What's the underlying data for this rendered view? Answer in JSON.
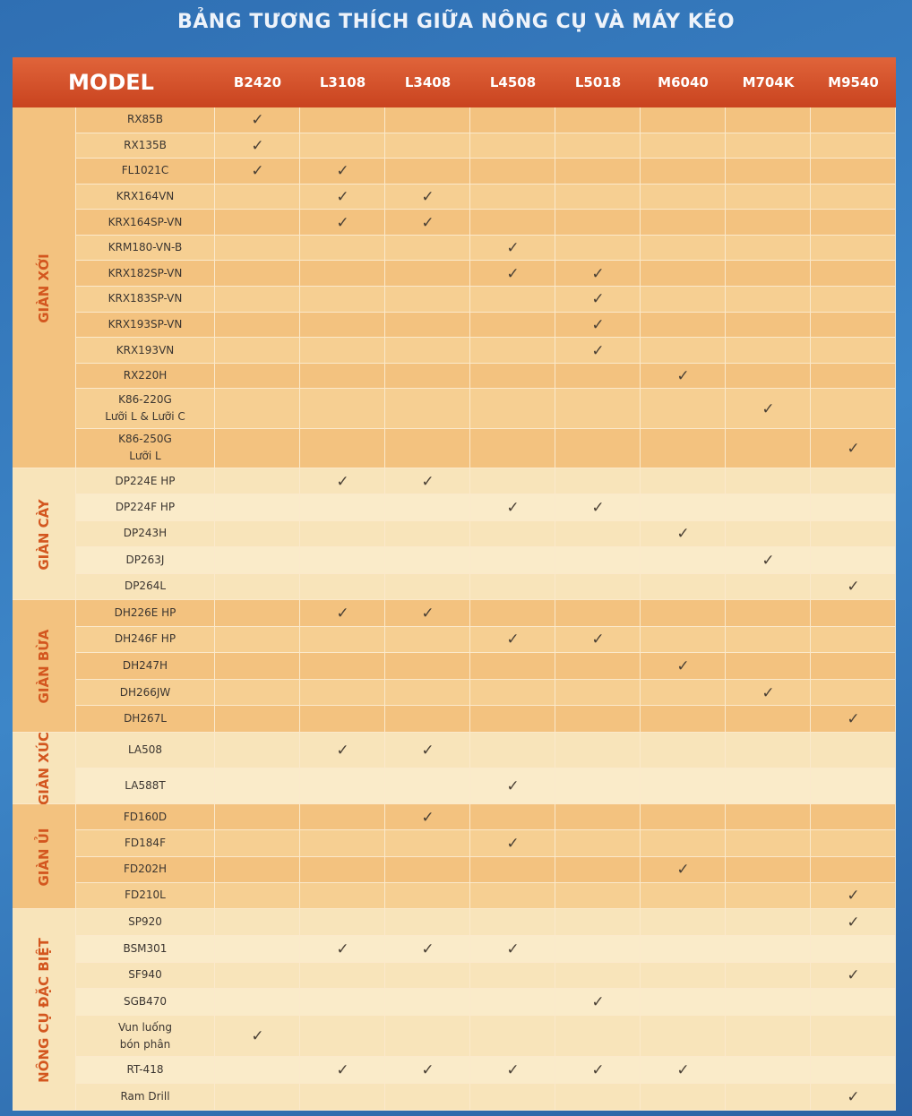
{
  "title": "BẢNG TƯƠNG THÍCH GIỮA NÔNG CỤ VÀ MÁY KÉO",
  "header": {
    "model": "MODEL",
    "columns": [
      "B2420",
      "L3108",
      "L3408",
      "L4508",
      "L5018",
      "M6040",
      "M704K",
      "M9540"
    ]
  },
  "groups": [
    {
      "label": "GIÀN XỚI",
      "rows": [
        {
          "model": "RX85B",
          "cells": [
            "✓",
            null,
            null,
            null,
            null,
            null,
            null,
            null
          ]
        },
        {
          "model": "RX135B",
          "cells": [
            "✓",
            null,
            null,
            null,
            null,
            null,
            null,
            null
          ]
        },
        {
          "model": "FL1021C",
          "cells": [
            "✓",
            "✓",
            null,
            null,
            null,
            null,
            null,
            null
          ]
        },
        {
          "model": "KRX164VN",
          "cells": [
            null,
            "✓",
            "✓",
            null,
            null,
            null,
            null,
            null
          ]
        },
        {
          "model": "KRX164SP-VN",
          "cells": [
            null,
            "✓",
            "✓",
            null,
            null,
            null,
            null,
            null
          ]
        },
        {
          "model": "KRM180-VN-B",
          "cells": [
            null,
            null,
            null,
            "✓",
            null,
            null,
            null,
            null
          ]
        },
        {
          "model": "KRX182SP-VN",
          "cells": [
            null,
            null,
            null,
            "✓",
            "✓",
            null,
            null,
            null
          ]
        },
        {
          "model": "KRX183SP-VN",
          "cells": [
            null,
            null,
            null,
            null,
            "✓",
            null,
            null,
            null
          ]
        },
        {
          "model": "KRX193SP-VN",
          "cells": [
            null,
            null,
            null,
            null,
            "✓",
            null,
            null,
            null
          ]
        },
        {
          "model": "KRX193VN",
          "cells": [
            null,
            null,
            null,
            null,
            "✓",
            null,
            null,
            null
          ]
        },
        {
          "model": "RX220H",
          "cells": [
            null,
            null,
            null,
            null,
            null,
            "✓",
            null,
            null
          ]
        },
        {
          "model": "K86-220G\nLưỡi L & Lưỡi C",
          "cells": [
            null,
            null,
            null,
            null,
            null,
            null,
            "✓",
            null
          ]
        },
        {
          "model": "K86-250G\nLưỡi L",
          "cells": [
            null,
            null,
            null,
            null,
            null,
            null,
            null,
            "✓"
          ]
        }
      ]
    },
    {
      "label": "GIÀN CÀY",
      "rows": [
        {
          "model": "DP224E HP",
          "cells": [
            null,
            "✓",
            "✓",
            null,
            null,
            null,
            null,
            null
          ]
        },
        {
          "model": "DP224F HP",
          "cells": [
            null,
            null,
            null,
            "✓",
            "✓",
            null,
            null,
            null
          ]
        },
        {
          "model": "DP243H",
          "cells": [
            null,
            null,
            null,
            null,
            null,
            "✓",
            null,
            null
          ]
        },
        {
          "model": "DP263J",
          "cells": [
            null,
            null,
            null,
            null,
            null,
            null,
            "✓",
            null
          ]
        },
        {
          "model": "DP264L",
          "cells": [
            null,
            null,
            null,
            null,
            null,
            null,
            null,
            "✓"
          ]
        }
      ]
    },
    {
      "label": "GIÀN BỪA",
      "rows": [
        {
          "model": "DH226E HP",
          "cells": [
            null,
            "✓",
            "✓",
            null,
            null,
            null,
            null,
            null
          ]
        },
        {
          "model": "DH246F HP",
          "cells": [
            null,
            null,
            null,
            "✓",
            "✓",
            null,
            null,
            null
          ]
        },
        {
          "model": "DH247H",
          "cells": [
            null,
            null,
            null,
            null,
            null,
            "✓",
            null,
            null
          ]
        },
        {
          "model": "DH266JW",
          "cells": [
            null,
            null,
            null,
            null,
            null,
            null,
            "✓",
            null
          ]
        },
        {
          "model": "DH267L",
          "cells": [
            null,
            null,
            null,
            null,
            null,
            null,
            null,
            "✓"
          ]
        }
      ]
    },
    {
      "label": "GIÀN XÚC",
      "rows": [
        {
          "model": "LA508",
          "cells": [
            null,
            "✓",
            "✓",
            null,
            null,
            null,
            null,
            null
          ]
        },
        {
          "model": "LA588T",
          "cells": [
            null,
            null,
            null,
            "✓",
            null,
            null,
            null,
            null
          ]
        }
      ]
    },
    {
      "label": "GIÀN ỦI",
      "rows": [
        {
          "model": "FD160D",
          "cells": [
            null,
            null,
            "✓",
            null,
            null,
            null,
            null,
            null
          ]
        },
        {
          "model": "FD184F",
          "cells": [
            null,
            null,
            null,
            "✓",
            null,
            null,
            null,
            null
          ]
        },
        {
          "model": "FD202H",
          "cells": [
            null,
            null,
            null,
            null,
            null,
            "✓",
            null,
            null
          ]
        },
        {
          "model": "FD210L",
          "cells": [
            null,
            null,
            null,
            null,
            null,
            null,
            null,
            "✓"
          ]
        }
      ]
    },
    {
      "label": "NÔNG CỤ ĐẶC BIỆT",
      "rows": [
        {
          "model": "SP920",
          "cells": [
            null,
            null,
            null,
            null,
            null,
            null,
            null,
            "✓"
          ]
        },
        {
          "model": "BSM301",
          "cells": [
            null,
            "✓",
            "✓",
            "✓",
            null,
            null,
            null,
            null
          ]
        },
        {
          "model": "SF940",
          "cells": [
            null,
            null,
            null,
            null,
            null,
            null,
            null,
            "✓"
          ]
        },
        {
          "model": "SGB470",
          "cells": [
            null,
            null,
            null,
            null,
            "✓",
            null,
            null,
            null
          ]
        },
        {
          "model": "Vun luống\nbón phân",
          "cells": [
            "✓",
            null,
            null,
            null,
            null,
            null,
            null,
            null
          ]
        },
        {
          "model": "RT-418",
          "cells": [
            null,
            "✓",
            "✓",
            "✓",
            "✓",
            "✓",
            null,
            null
          ]
        },
        {
          "model": "Ram Drill",
          "cells": [
            null,
            null,
            null,
            null,
            null,
            null,
            null,
            "✓"
          ]
        }
      ]
    }
  ]
}
